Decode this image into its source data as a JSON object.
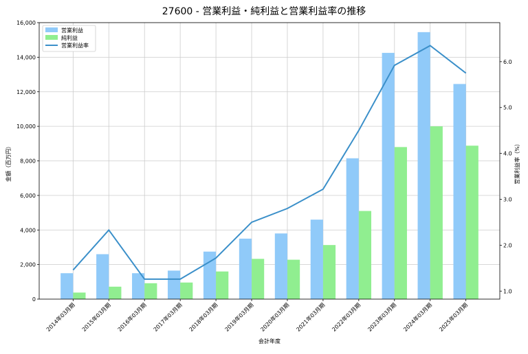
{
  "chart_data": {
    "type": "bar",
    "title": "27600 - 営業利益・純利益と営業利益率の推移",
    "xlabel": "会計年度",
    "ylabel_left": "金額（百万円）",
    "ylabel_right": "営業利益率（%）",
    "categories": [
      "2014年03月期",
      "2015年03月期",
      "2016年03月期",
      "2017年03月期",
      "2018年03月期",
      "2019年03月期",
      "2020年03月期",
      "2021年03月期",
      "2022年03月期",
      "2023年03月期",
      "2024年03月期",
      "2025年03月期"
    ],
    "series": [
      {
        "name": "営業利益",
        "kind": "bar",
        "axis": "left",
        "color": "#90caf9",
        "values": [
          1500,
          2600,
          1500,
          1650,
          2750,
          3500,
          3800,
          4600,
          8150,
          14250,
          15450,
          12450
        ]
      },
      {
        "name": "純利益",
        "kind": "bar",
        "axis": "left",
        "color": "#90ee90",
        "values": [
          380,
          720,
          920,
          960,
          1600,
          2330,
          2280,
          3130,
          5100,
          8800,
          10000,
          8880
        ]
      },
      {
        "name": "営業利益率",
        "kind": "line",
        "axis": "right",
        "color": "#3a8fc9",
        "values": [
          1.46,
          2.33,
          1.26,
          1.26,
          1.72,
          2.5,
          2.8,
          3.22,
          4.5,
          5.92,
          6.35,
          5.75
        ]
      }
    ],
    "ylim_left": [
      0,
      16000
    ],
    "yticks_left": [
      "0",
      "2,000",
      "4,000",
      "6,000",
      "8,000",
      "10,000",
      "12,000",
      "14,000",
      "16,000"
    ],
    "ylim_right": [
      0.825,
      6.85
    ],
    "yticks_right": [
      {
        "value": 1.0,
        "label": "1.0"
      },
      {
        "value": 2.0,
        "label": "2.0"
      },
      {
        "value": 3.0,
        "label": "3.0"
      },
      {
        "value": 4.0,
        "label": "4.0"
      },
      {
        "value": 5.0,
        "label": "5.0"
      },
      {
        "value": 6.0,
        "label": "6.0"
      }
    ],
    "grid": true,
    "legend": "top-left"
  }
}
